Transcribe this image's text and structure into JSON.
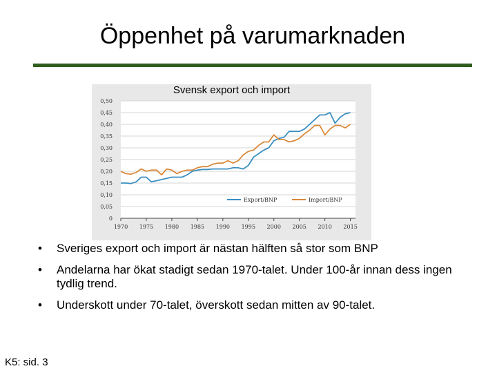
{
  "slide": {
    "title": "Öppenhet på varumarknaden",
    "bullets": [
      "Sveriges export och import är nästan hälften så stor som BNP",
      "Andelarna har ökat stadigt sedan 1970-talet. Under 100-år innan dess ingen tydlig trend.",
      "Underskott under 70-talet, överskott sedan mitten av 90-talet."
    ],
    "bullet_char": "•",
    "footer": "K5: sid. 3"
  },
  "chart_data": {
    "type": "line",
    "title": "Svensk export och import",
    "xlabel": "",
    "ylabel": "",
    "xlim": [
      1970,
      2016
    ],
    "ylim": [
      0,
      0.5
    ],
    "x_ticks": [
      1970,
      1975,
      1980,
      1985,
      1990,
      1995,
      2000,
      2005,
      2010,
      2015
    ],
    "y_ticks": [
      "0",
      "0,05",
      "0,10",
      "0,15",
      "0,20",
      "0,25",
      "0,30",
      "0,35",
      "0,40",
      "0,45",
      "0,50"
    ],
    "grid": true,
    "legend_position": "bottom-right",
    "x": [
      1970,
      1971,
      1972,
      1973,
      1974,
      1975,
      1976,
      1977,
      1978,
      1979,
      1980,
      1981,
      1982,
      1983,
      1984,
      1985,
      1986,
      1987,
      1988,
      1989,
      1990,
      1991,
      1992,
      1993,
      1994,
      1995,
      1996,
      1997,
      1998,
      1999,
      2000,
      2001,
      2002,
      2003,
      2004,
      2005,
      2006,
      2007,
      2008,
      2009,
      2010,
      2011,
      2012,
      2013,
      2014,
      2015
    ],
    "series": [
      {
        "name": "Export/BNP",
        "color": "#3a8fc2",
        "values": [
          0.15,
          0.15,
          0.148,
          0.155,
          0.175,
          0.175,
          0.155,
          0.16,
          0.165,
          0.17,
          0.175,
          0.175,
          0.175,
          0.185,
          0.2,
          0.205,
          0.208,
          0.208,
          0.21,
          0.21,
          0.21,
          0.21,
          0.215,
          0.215,
          0.21,
          0.225,
          0.26,
          0.275,
          0.29,
          0.3,
          0.33,
          0.34,
          0.345,
          0.37,
          0.37,
          0.37,
          0.38,
          0.4,
          0.42,
          0.44,
          0.44,
          0.45,
          0.405,
          0.43,
          0.445,
          0.45
        ]
      },
      {
        "name": "Import/BNP",
        "color": "#d98a3a",
        "values": [
          0.2,
          0.19,
          0.188,
          0.195,
          0.21,
          0.2,
          0.205,
          0.205,
          0.185,
          0.21,
          0.205,
          0.19,
          0.2,
          0.205,
          0.205,
          0.215,
          0.22,
          0.22,
          0.23,
          0.235,
          0.235,
          0.245,
          0.235,
          0.245,
          0.27,
          0.285,
          0.29,
          0.31,
          0.325,
          0.325,
          0.355,
          0.335,
          0.335,
          0.325,
          0.33,
          0.34,
          0.36,
          0.375,
          0.395,
          0.395,
          0.355,
          0.38,
          0.395,
          0.395,
          0.385,
          0.4
        ]
      }
    ]
  }
}
